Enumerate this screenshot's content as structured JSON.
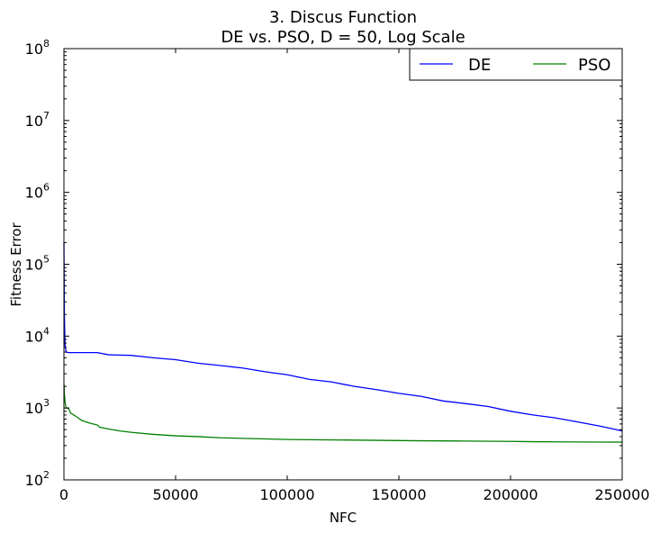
{
  "chart_data": {
    "type": "line",
    "title": "3.   Discus Function",
    "subtitle": "DE vs. PSO, D = 50, Log Scale",
    "xlabel": "NFC",
    "ylabel": "Fitness Error",
    "xlim": [
      0,
      250000
    ],
    "ylim": [
      100,
      100000000
    ],
    "yscale": "log",
    "xticks": [
      "0",
      "50000",
      "100000",
      "150000",
      "200000",
      "250000"
    ],
    "yticks_exponents": [
      "2",
      "3",
      "4",
      "5",
      "6",
      "7",
      "8"
    ],
    "ytick_base": "10",
    "grid": false,
    "legend_position": "top-right",
    "series": [
      {
        "name": "DE",
        "color": "#0000ff",
        "x": [
          0,
          200,
          500,
          1000,
          2000,
          5000,
          10000,
          15000,
          20000,
          30000,
          40000,
          50000,
          60000,
          70000,
          80000,
          90000,
          100000,
          110000,
          120000,
          130000,
          140000,
          150000,
          160000,
          170000,
          180000,
          190000,
          200000,
          210000,
          220000,
          230000,
          240000,
          250000
        ],
        "y": [
          200000,
          20000,
          7500,
          6000,
          5900,
          5900,
          5900,
          5900,
          5500,
          5400,
          5000,
          4700,
          4200,
          3900,
          3600,
          3200,
          2900,
          2500,
          2300,
          2000,
          1800,
          1600,
          1450,
          1250,
          1150,
          1050,
          900,
          800,
          730,
          640,
          560,
          480
        ]
      },
      {
        "name": "PSO",
        "color": "#008000",
        "x": [
          0,
          200,
          500,
          1000,
          2000,
          3000,
          5000,
          8000,
          12000,
          15000,
          16000,
          20000,
          25000,
          30000,
          40000,
          50000,
          60000,
          70000,
          80000,
          100000,
          120000,
          140000,
          160000,
          180000,
          200000,
          210000,
          220000,
          240000,
          250000
        ],
        "y": [
          2200,
          1600,
          1200,
          1000,
          1000,
          850,
          780,
          670,
          610,
          580,
          540,
          510,
          480,
          460,
          430,
          410,
          400,
          385,
          378,
          365,
          360,
          355,
          350,
          347,
          343,
          340,
          338,
          336,
          335
        ]
      }
    ]
  }
}
